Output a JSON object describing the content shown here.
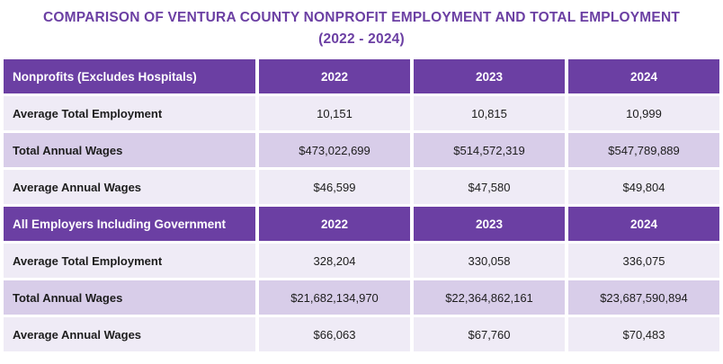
{
  "title": {
    "line1": "COMPARISON OF VENTURA COUNTY NONPROFIT EMPLOYMENT AND TOTAL EMPLOYMENT",
    "line2": "(2022 - 2024)"
  },
  "colors": {
    "header_bg": "#6B3FA3",
    "row_light_bg": "#EFEBF6",
    "row_dark_bg": "#D8CDE9",
    "title_color": "#6B3FA3"
  },
  "chart_data": {
    "type": "table",
    "title": "COMPARISON OF VENTURA COUNTY NONPROFIT EMPLOYMENT AND TOTAL EMPLOYMENT (2022 - 2024)",
    "columns": [
      "2022",
      "2023",
      "2024"
    ],
    "sections": [
      {
        "header": "Nonprofits (Excludes Hospitals)",
        "years": [
          "2022",
          "2023",
          "2024"
        ],
        "rows": [
          {
            "label": "Average Total Employment",
            "values": [
              "10,151",
              "10,815",
              "10,999"
            ]
          },
          {
            "label": "Total Annual Wages",
            "values": [
              "$473,022,699",
              "$514,572,319",
              "$547,789,889"
            ]
          },
          {
            "label": "Average Annual Wages",
            "values": [
              "$46,599",
              "$47,580",
              "$49,804"
            ]
          }
        ]
      },
      {
        "header": "All Employers Including Government",
        "years": [
          "2022",
          "2023",
          "2024"
        ],
        "rows": [
          {
            "label": "Average Total Employment",
            "values": [
              "328,204",
              "330,058",
              "336,075"
            ]
          },
          {
            "label": "Total Annual Wages",
            "values": [
              "$21,682,134,970",
              "$22,364,862,161",
              "$23,687,590,894"
            ]
          },
          {
            "label": "Average Annual Wages",
            "values": [
              "$66,063",
              "$67,760",
              "$70,483"
            ]
          }
        ]
      }
    ]
  }
}
